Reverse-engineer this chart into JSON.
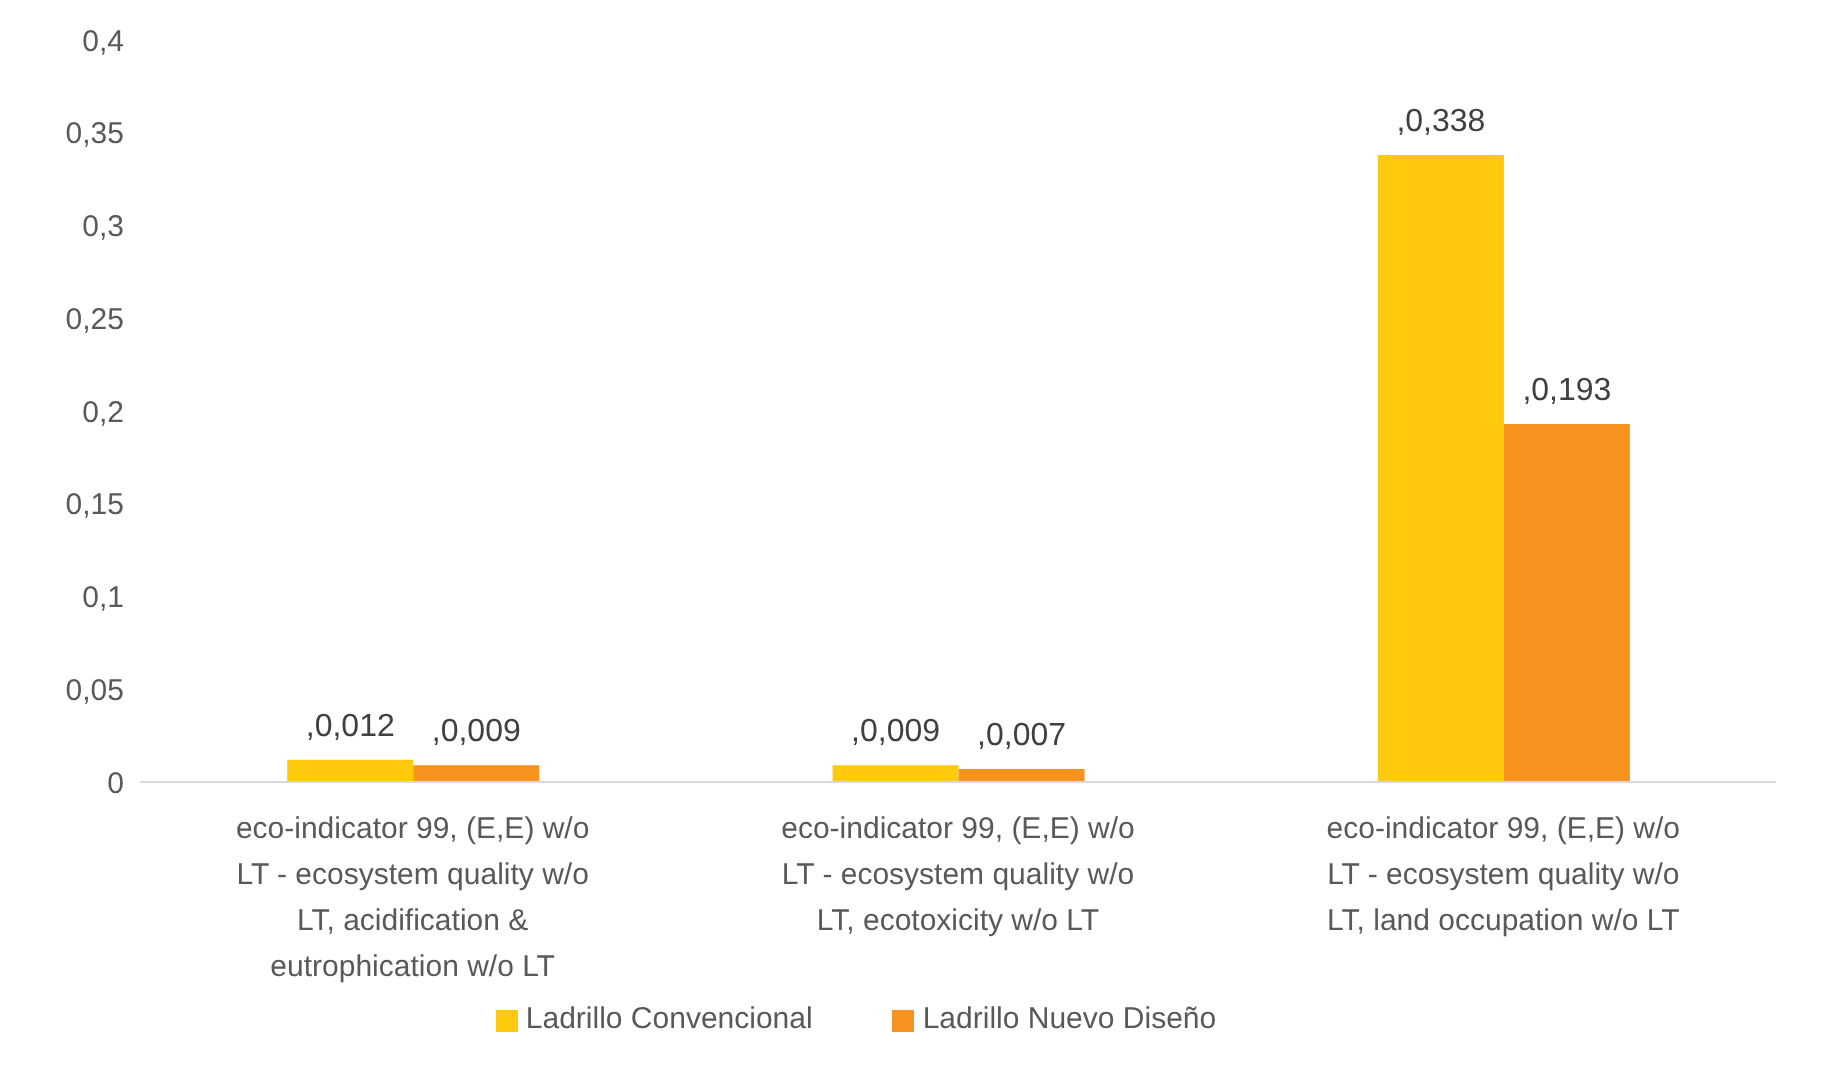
{
  "chart_data": {
    "type": "bar",
    "categories": [
      "eco-indicator 99, (E,E) w/o LT - ecosystem quality w/o LT, acidification & eutrophication w/o LT",
      "eco-indicator 99, (E,E) w/o LT - ecosystem quality w/o LT, ecotoxicity w/o LT",
      "eco-indicator 99, (E,E) w/o LT - ecosystem quality w/o LT, land occupation w/o LT"
    ],
    "series": [
      {
        "name": "Ladrillo Convencional",
        "color": "#ffc90e",
        "values": [
          0.012,
          0.009,
          0.338
        ],
        "value_labels": [
          ",0,012",
          ",0,009",
          ",0,338"
        ]
      },
      {
        "name": "Ladrillo Nuevo Diseño",
        "color": "#f7931e",
        "values": [
          0.009,
          0.007,
          0.193
        ],
        "value_labels": [
          ",0,009",
          ",0,007",
          ",0,193"
        ]
      }
    ],
    "ylim": [
      0,
      0.4
    ],
    "yticks": [
      0,
      {
        "value": 0.05,
        "label": "0,05"
      },
      {
        "value": 0.1,
        "label": "0,1"
      },
      {
        "value": 0.15,
        "label": "0,15"
      },
      {
        "value": 0.2,
        "label": "0,2"
      },
      {
        "value": 0.25,
        "label": "0,25"
      },
      {
        "value": 0.3,
        "label": "0,3"
      },
      {
        "value": 0.35,
        "label": "0,35"
      },
      {
        "value": 0.4,
        "label": "0,4"
      }
    ],
    "grid": false,
    "legend": "bottom"
  }
}
